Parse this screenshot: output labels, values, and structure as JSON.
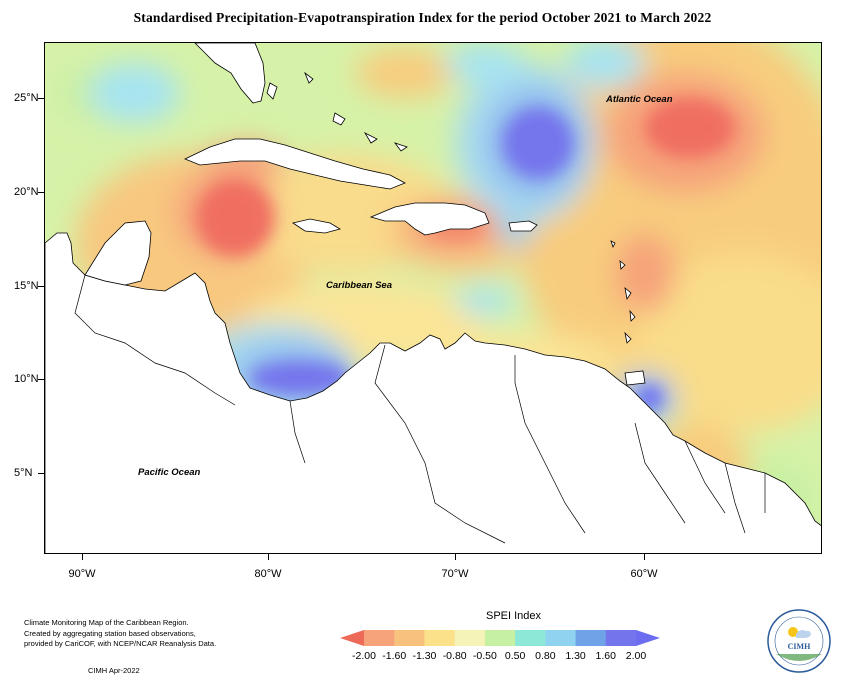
{
  "title": "Standardised Precipitation-Evapotranspiration Index for the period October 2021 to March 2022",
  "map": {
    "latitude_labels": [
      "25°N",
      "20°N",
      "15°N",
      "10°N",
      "5°N"
    ],
    "longitude_labels": [
      "90°W",
      "80°W",
      "70°W",
      "60°W"
    ],
    "ocean_labels": {
      "atlantic": "Atlantic Ocean",
      "caribbean": "Caribbean Sea",
      "pacific": "Pacific Ocean"
    }
  },
  "legend": {
    "title": "SPEI Index",
    "values": [
      "-2.00",
      "-1.60",
      "-1.30",
      "-0.80",
      "-0.50",
      "0.50",
      "0.80",
      "1.30",
      "1.60",
      "2.00"
    ],
    "colors": [
      "#ee6a58",
      "#f6a27a",
      "#f8c27e",
      "#fbe18a",
      "#f5f3b8",
      "#c6f0a2",
      "#8ee8d8",
      "#8fd3f0",
      "#6fa3e8",
      "#7474ec",
      "#6d6df2"
    ]
  },
  "credit": {
    "line1": "Climate Monitoring Map of the Caribbean Region.",
    "line2": "Created by aggregating station based observations,",
    "line3": "provided by CariCOF, with NCEP/NCAR Reanalysis Data.",
    "date": "CIMH Apr-2022"
  },
  "logo": {
    "text": "CIMH"
  },
  "colors": {
    "background_field": "#d7f2a6",
    "land": "#ffffff",
    "dry_strong": "#f06e60",
    "wet_strong": "#7878ee"
  }
}
